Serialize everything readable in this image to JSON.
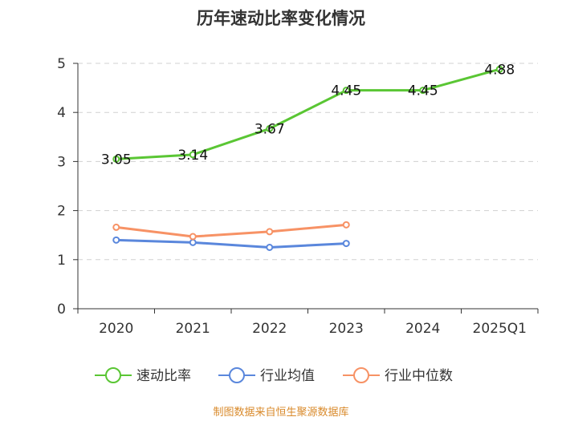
{
  "chart_data": {
    "type": "line",
    "title": "历年速动比率变化情况",
    "categories": [
      "2020",
      "2021",
      "2022",
      "2023",
      "2024",
      "2025Q1"
    ],
    "ylim": [
      0,
      5
    ],
    "yticks": [
      0,
      1,
      2,
      3,
      4,
      5
    ],
    "grid": true,
    "legend_position": "bottom",
    "series": [
      {
        "name": "速动比率",
        "color": "#5ac634",
        "values": [
          3.05,
          3.14,
          3.67,
          4.45,
          4.45,
          4.88
        ],
        "labels": [
          "3.05",
          "3.14",
          "3.67",
          "4.45",
          "4.45",
          "4.88"
        ],
        "show_labels": true
      },
      {
        "name": "行业均值",
        "color": "#5a87dc",
        "values": [
          1.4,
          1.35,
          1.25,
          1.33,
          null,
          null
        ],
        "show_labels": false
      },
      {
        "name": "行业中位数",
        "color": "#f79265",
        "values": [
          1.66,
          1.47,
          1.57,
          1.71,
          null,
          null
        ],
        "show_labels": false
      }
    ],
    "source": "制图数据来自恒生聚源数据库"
  }
}
